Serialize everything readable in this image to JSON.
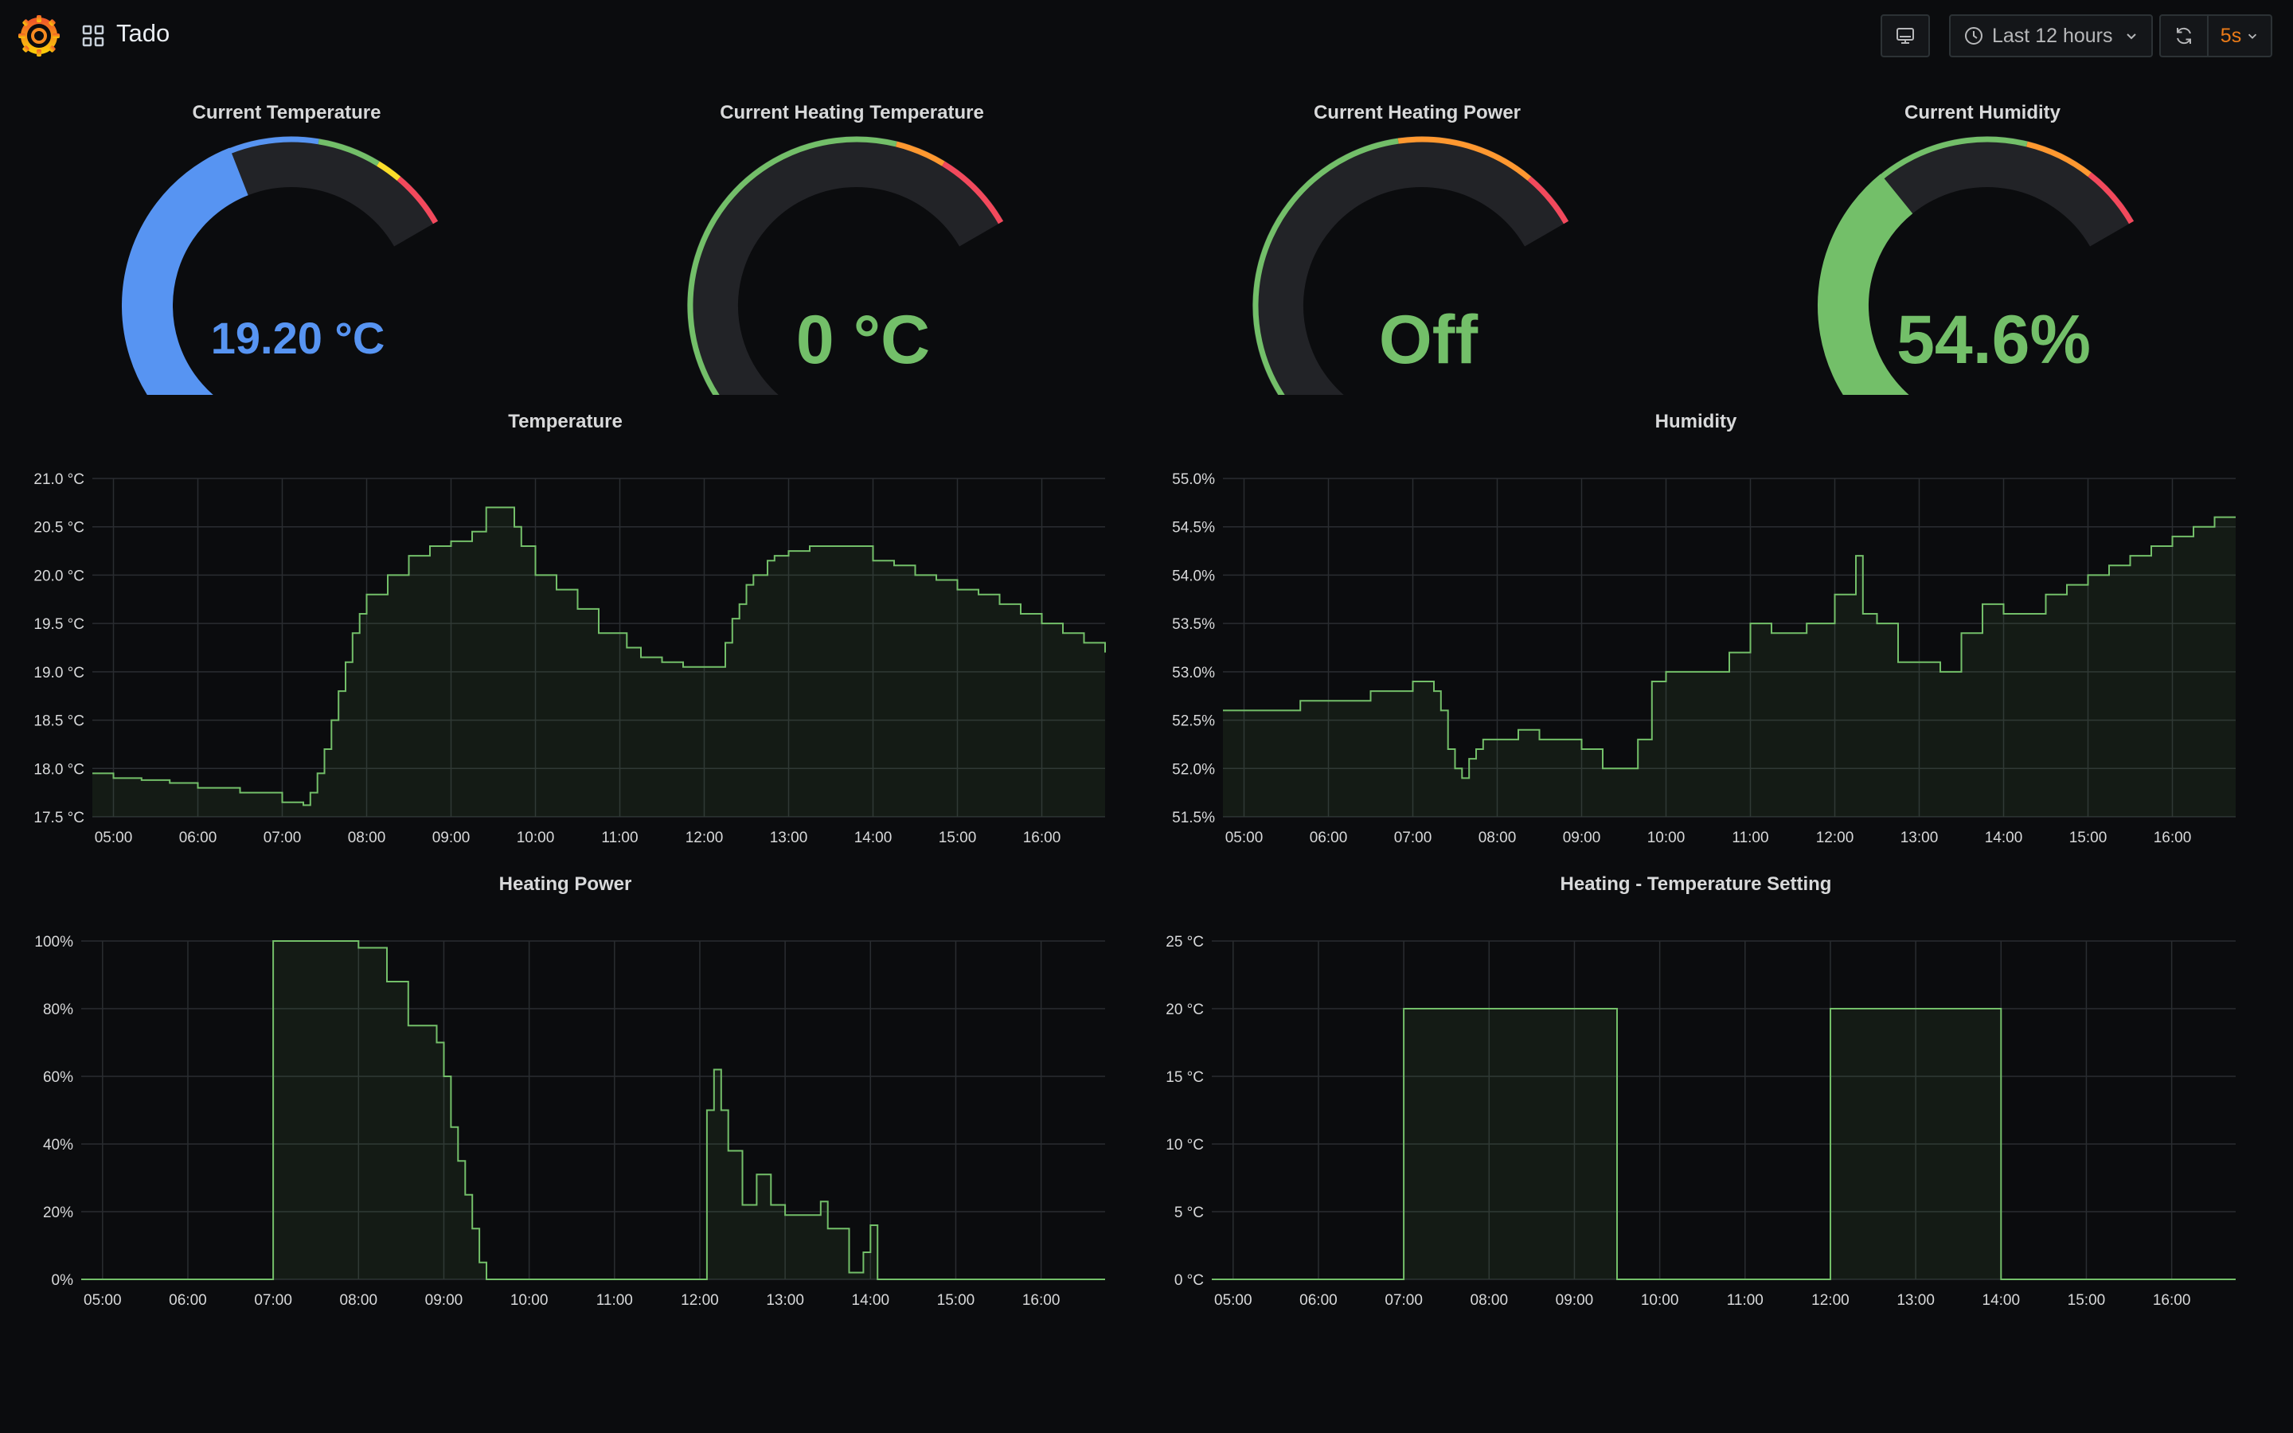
{
  "header": {
    "title": "Tado",
    "time_range": "Last 12 hours",
    "refresh_interval": "5s",
    "icons": {
      "logo": "grafana-logo-icon",
      "dashboards": "apps-grid-icon",
      "tv": "monitor-icon",
      "clock": "clock-icon",
      "chevron": "chevron-down-icon",
      "refresh": "sync-icon"
    }
  },
  "colors": {
    "background": "#0b0c0e",
    "green": "#73bf69",
    "blue": "#5794f2",
    "orange": "#ff9830",
    "yellow": "#fade2a",
    "red": "#f2495c",
    "interval": "#eb7b18"
  },
  "gauges": [
    {
      "title": "Current Temperature",
      "value_text": "19.20 °C",
      "fraction": 0.63,
      "color": "#5794f2",
      "thresholds": [
        {
          "from": 0,
          "to": 0.77,
          "color": "#5794f2"
        },
        {
          "from": 0.77,
          "to": 0.87,
          "color": "#73bf69"
        },
        {
          "from": 0.87,
          "to": 0.91,
          "color": "#fade2a"
        },
        {
          "from": 0.91,
          "to": 1,
          "color": "#f2495c"
        }
      ]
    },
    {
      "title": "Current Heating Temperature",
      "value_text": "0 °C",
      "fraction": 0,
      "color": "#73bf69",
      "thresholds": [
        {
          "from": 0,
          "to": 0.79,
          "color": "#73bf69"
        },
        {
          "from": 0.79,
          "to": 0.87,
          "color": "#ff9830"
        },
        {
          "from": 0.87,
          "to": 1,
          "color": "#f2495c"
        }
      ]
    },
    {
      "title": "Current Heating Power",
      "value_text": "Off",
      "fraction": 0,
      "color": "#73bf69",
      "thresholds": [
        {
          "from": 0,
          "to": 0.69,
          "color": "#73bf69"
        },
        {
          "from": 0.69,
          "to": 0.91,
          "color": "#ff9830"
        },
        {
          "from": 0.91,
          "to": 1,
          "color": "#f2495c"
        }
      ]
    },
    {
      "title": "Current Humidity",
      "value_text": "54.6%",
      "fraction": 0.55,
      "color": "#73bf69",
      "thresholds": [
        {
          "from": 0,
          "to": 0.79,
          "color": "#73bf69"
        },
        {
          "from": 0.79,
          "to": 0.9,
          "color": "#ff9830"
        },
        {
          "from": 0.9,
          "to": 1,
          "color": "#f2495c"
        }
      ]
    }
  ],
  "chart_data": [
    {
      "type": "area",
      "title": "Temperature",
      "x_ticks": [
        "05:00",
        "06:00",
        "07:00",
        "08:00",
        "09:00",
        "10:00",
        "11:00",
        "12:00",
        "13:00",
        "14:00",
        "15:00",
        "16:00"
      ],
      "y_ticks": [
        "17.5 °C",
        "18.0 °C",
        "18.5 °C",
        "19.0 °C",
        "19.5 °C",
        "20.0 °C",
        "20.5 °C",
        "21.0 °C"
      ],
      "x_range": [
        "04:45",
        "16:45"
      ],
      "ylim": [
        17.5,
        21.0
      ],
      "interpolation": "step",
      "color": "#73bf69",
      "series": [
        {
          "x": [
            "04:45",
            "05:00",
            "05:20",
            "05:40",
            "06:00",
            "06:30",
            "07:00",
            "07:15",
            "07:20",
            "07:25",
            "07:30",
            "07:35",
            "07:40",
            "07:45",
            "07:50",
            "07:55",
            "08:00",
            "08:15",
            "08:30",
            "08:45",
            "09:00",
            "09:15",
            "09:25",
            "09:45",
            "09:50",
            "10:00",
            "10:15",
            "10:30",
            "10:45",
            "11:05",
            "11:15",
            "11:30",
            "11:45",
            "12:00",
            "12:15",
            "12:20",
            "12:25",
            "12:30",
            "12:35",
            "12:45",
            "12:50",
            "13:00",
            "13:15",
            "13:30",
            "14:00",
            "14:15",
            "14:30",
            "14:45",
            "15:00",
            "15:15",
            "15:30",
            "15:45",
            "16:00",
            "16:15",
            "16:30",
            "16:45"
          ],
          "y": [
            17.95,
            17.9,
            17.88,
            17.85,
            17.8,
            17.75,
            17.65,
            17.62,
            17.75,
            17.95,
            18.2,
            18.5,
            18.8,
            19.1,
            19.4,
            19.6,
            19.8,
            20.0,
            20.2,
            20.3,
            20.35,
            20.45,
            20.7,
            20.5,
            20.3,
            20.0,
            19.85,
            19.65,
            19.4,
            19.25,
            19.15,
            19.1,
            19.05,
            19.05,
            19.3,
            19.55,
            19.7,
            19.9,
            20.0,
            20.15,
            20.2,
            20.25,
            20.3,
            20.3,
            20.15,
            20.1,
            20.0,
            19.95,
            19.85,
            19.8,
            19.7,
            19.6,
            19.5,
            19.4,
            19.3,
            19.2
          ]
        }
      ]
    },
    {
      "type": "area",
      "title": "Humidity",
      "x_ticks": [
        "05:00",
        "06:00",
        "07:00",
        "08:00",
        "09:00",
        "10:00",
        "11:00",
        "12:00",
        "13:00",
        "14:00",
        "15:00",
        "16:00"
      ],
      "y_ticks": [
        "51.5%",
        "52.0%",
        "52.5%",
        "53.0%",
        "53.5%",
        "54.0%",
        "54.5%",
        "55.0%"
      ],
      "x_range": [
        "04:45",
        "16:45"
      ],
      "ylim": [
        51.5,
        55.0
      ],
      "interpolation": "step",
      "color": "#73bf69",
      "series": [
        {
          "x": [
            "04:45",
            "05:40",
            "06:00",
            "06:30",
            "06:45",
            "07:00",
            "07:05",
            "07:15",
            "07:20",
            "07:25",
            "07:30",
            "07:35",
            "07:40",
            "07:45",
            "07:50",
            "08:00",
            "08:15",
            "08:30",
            "08:45",
            "09:00",
            "09:15",
            "09:30",
            "09:40",
            "09:50",
            "10:00",
            "10:15",
            "10:45",
            "11:00",
            "11:15",
            "11:40",
            "12:00",
            "12:15",
            "12:20",
            "12:30",
            "12:45",
            "13:00",
            "13:15",
            "13:30",
            "13:45",
            "14:00",
            "14:15",
            "14:30",
            "14:45",
            "15:00",
            "15:15",
            "15:30",
            "15:45",
            "16:00",
            "16:15",
            "16:30",
            "16:45"
          ],
          "y": [
            52.6,
            52.7,
            52.7,
            52.8,
            52.8,
            52.9,
            52.9,
            52.8,
            52.6,
            52.2,
            52.0,
            51.9,
            52.1,
            52.2,
            52.3,
            52.3,
            52.4,
            52.3,
            52.3,
            52.2,
            52.0,
            52.0,
            52.3,
            52.9,
            53.0,
            53.0,
            53.2,
            53.5,
            53.4,
            53.5,
            53.8,
            54.2,
            53.6,
            53.5,
            53.1,
            53.1,
            53.0,
            53.4,
            53.7,
            53.6,
            53.6,
            53.8,
            53.9,
            54.0,
            54.1,
            54.2,
            54.3,
            54.4,
            54.5,
            54.6,
            54.6
          ]
        }
      ]
    },
    {
      "type": "area",
      "title": "Heating Power",
      "x_ticks": [
        "05:00",
        "06:00",
        "07:00",
        "08:00",
        "09:00",
        "10:00",
        "11:00",
        "12:00",
        "13:00",
        "14:00",
        "15:00",
        "16:00"
      ],
      "y_ticks": [
        "0%",
        "20%",
        "40%",
        "60%",
        "80%",
        "100%"
      ],
      "x_range": [
        "04:45",
        "16:45"
      ],
      "ylim": [
        0,
        100
      ],
      "interpolation": "step",
      "color": "#73bf69",
      "series": [
        {
          "x": [
            "04:45",
            "07:00",
            "08:00",
            "08:20",
            "08:35",
            "08:55",
            "09:00",
            "09:05",
            "09:10",
            "09:15",
            "09:20",
            "09:25",
            "09:30",
            "12:00",
            "12:05",
            "12:10",
            "12:15",
            "12:20",
            "12:30",
            "12:40",
            "12:50",
            "13:00",
            "13:15",
            "13:25",
            "13:30",
            "13:45",
            "13:55",
            "14:00",
            "14:05"
          ],
          "y": [
            0,
            100,
            98,
            88,
            75,
            70,
            60,
            45,
            35,
            25,
            15,
            5,
            0,
            0,
            50,
            62,
            50,
            38,
            22,
            31,
            22,
            19,
            19,
            23,
            15,
            2,
            8,
            16,
            0
          ]
        }
      ]
    },
    {
      "type": "area",
      "title": "Heating - Temperature Setting",
      "x_ticks": [
        "05:00",
        "06:00",
        "07:00",
        "08:00",
        "09:00",
        "10:00",
        "11:00",
        "12:00",
        "13:00",
        "14:00",
        "15:00",
        "16:00"
      ],
      "y_ticks": [
        "0 °C",
        "5 °C",
        "10 °C",
        "15 °C",
        "20 °C",
        "25 °C"
      ],
      "x_range": [
        "04:45",
        "16:45"
      ],
      "ylim": [
        0,
        25
      ],
      "interpolation": "step",
      "color": "#73bf69",
      "series": [
        {
          "x": [
            "04:45",
            "07:00",
            "09:30",
            "12:00",
            "14:00"
          ],
          "y": [
            0,
            20,
            0,
            20,
            0
          ]
        }
      ]
    }
  ]
}
